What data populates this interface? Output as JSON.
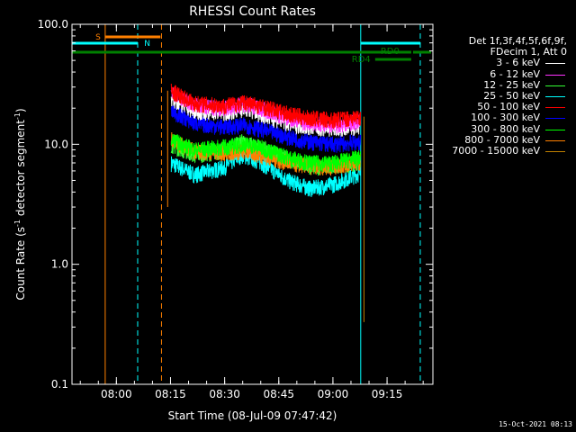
{
  "chart_data": {
    "type": "line",
    "title": "RHESSI Count Rates",
    "xlabel": "Start Time (08-Jul-09 07:47:42)",
    "ylabel_main": "Count Rate (s",
    "ylabel_sup1": "-1",
    "ylabel_mid": " detector segment",
    "ylabel_sup2": "-1",
    "ylabel_end": ")",
    "y_scale": "log",
    "ylim": [
      0.1,
      100.0
    ],
    "xlim_minutes_after_0747": [
      0,
      100
    ],
    "xticks": [
      {
        "label": "08:00",
        "min": 12.3
      },
      {
        "label": "08:15",
        "min": 27.3
      },
      {
        "label": "08:30",
        "min": 42.3
      },
      {
        "label": "08:45",
        "min": 57.3
      },
      {
        "label": "09:00",
        "min": 72.3
      },
      {
        "label": "09:15",
        "min": 87.3
      }
    ],
    "yticks": [
      {
        "label": "100.0",
        "v": 100
      },
      {
        "label": "10.0",
        "v": 10
      },
      {
        "label": "1.0",
        "v": 1
      },
      {
        "label": "0.1",
        "v": 0.1
      }
    ],
    "series": [
      {
        "name": "3 - 6 keV",
        "color": "#ffffff",
        "values": [
          [
            27.5,
            24
          ],
          [
            34,
            19
          ],
          [
            42,
            18.5
          ],
          [
            48,
            20
          ],
          [
            52,
            18
          ],
          [
            60,
            15
          ],
          [
            66,
            14
          ],
          [
            72,
            13.5
          ],
          [
            80,
            14
          ]
        ]
      },
      {
        "name": "6 - 12 keV",
        "color": "#ff33ff",
        "values": [
          [
            27.5,
            27
          ],
          [
            34,
            21
          ],
          [
            42,
            20
          ],
          [
            48,
            22
          ],
          [
            52,
            20
          ],
          [
            60,
            16.5
          ],
          [
            66,
            15
          ],
          [
            72,
            14.5
          ],
          [
            80,
            15.5
          ]
        ]
      },
      {
        "name": "12 - 25 keV",
        "color": "#33ff33",
        "values": [
          [
            27.5,
            10
          ],
          [
            34,
            8.2
          ],
          [
            42,
            8.8
          ],
          [
            47,
            10.5
          ],
          [
            52,
            9.5
          ],
          [
            60,
            7.5
          ],
          [
            66,
            6.6
          ],
          [
            72,
            6.4
          ],
          [
            80,
            7.2
          ]
        ]
      },
      {
        "name": "25 - 50 keV",
        "color": "#00ffff",
        "values": [
          [
            27.5,
            7
          ],
          [
            34,
            5.6
          ],
          [
            42,
            6.4
          ],
          [
            47,
            8.2
          ],
          [
            52,
            7.2
          ],
          [
            60,
            5
          ],
          [
            66,
            4.3
          ],
          [
            72,
            4.6
          ],
          [
            80,
            5.8
          ]
        ]
      },
      {
        "name": "50 - 100 keV",
        "color": "#ff0000",
        "values": [
          [
            27.5,
            28
          ],
          [
            34,
            22
          ],
          [
            42,
            21
          ],
          [
            48,
            22.5
          ],
          [
            52,
            21
          ],
          [
            60,
            18
          ],
          [
            66,
            16.5
          ],
          [
            72,
            16
          ],
          [
            80,
            17
          ]
        ]
      },
      {
        "name": "100 - 300 keV",
        "color": "#0000ff",
        "values": [
          [
            27.5,
            19
          ],
          [
            34,
            15
          ],
          [
            42,
            14
          ],
          [
            48,
            14.5
          ],
          [
            52,
            13.5
          ],
          [
            60,
            11.5
          ],
          [
            66,
            10.5
          ],
          [
            72,
            10
          ],
          [
            80,
            10.5
          ]
        ]
      },
      {
        "name": "300 - 800 keV",
        "color": "#00ff00",
        "values": [
          [
            27.5,
            11
          ],
          [
            34,
            9
          ],
          [
            42,
            9.5
          ],
          [
            48,
            10
          ],
          [
            52,
            9.5
          ],
          [
            60,
            7.8
          ],
          [
            66,
            7
          ],
          [
            72,
            7
          ],
          [
            80,
            7.8
          ]
        ]
      },
      {
        "name": "800 - 7000 keV",
        "color": "#ff8000",
        "values": [
          [
            27.5,
            11
          ],
          [
            34,
            8.8
          ],
          [
            42,
            8.5
          ],
          [
            48,
            8.8
          ],
          [
            52,
            8.2
          ],
          [
            60,
            7
          ],
          [
            66,
            6.6
          ],
          [
            72,
            6.5
          ],
          [
            80,
            7.2
          ]
        ]
      },
      {
        "name": "7000 - 15000 keV",
        "color": "#c08000",
        "values": []
      }
    ],
    "flags": {
      "S": {
        "label": "S",
        "color": "#ff8000"
      },
      "N": {
        "label": "N",
        "color": "#00ffff"
      },
      "RD0": {
        "label": "RD0",
        "color": "#008000"
      },
      "RD4": {
        "label": "RD4",
        "color": "#008000"
      }
    },
    "markers": [
      {
        "min": 9.2,
        "color": "#ff8000",
        "style": "solid"
      },
      {
        "min": 18.2,
        "color": "#00ffff",
        "style": "dashed"
      },
      {
        "min": 24.8,
        "color": "#ff8000",
        "style": "dashed"
      },
      {
        "min": 80.0,
        "color": "#00ffff",
        "style": "solid"
      },
      {
        "min": 96.5,
        "color": "#00ffff",
        "style": "dashed"
      }
    ]
  },
  "legend": {
    "header_line1": "Det 1f,3f,4f,5f,6f,9f,",
    "header_line2": "FDecim 1, Att 0"
  },
  "timestamp": "15-Oct-2021 08:13"
}
